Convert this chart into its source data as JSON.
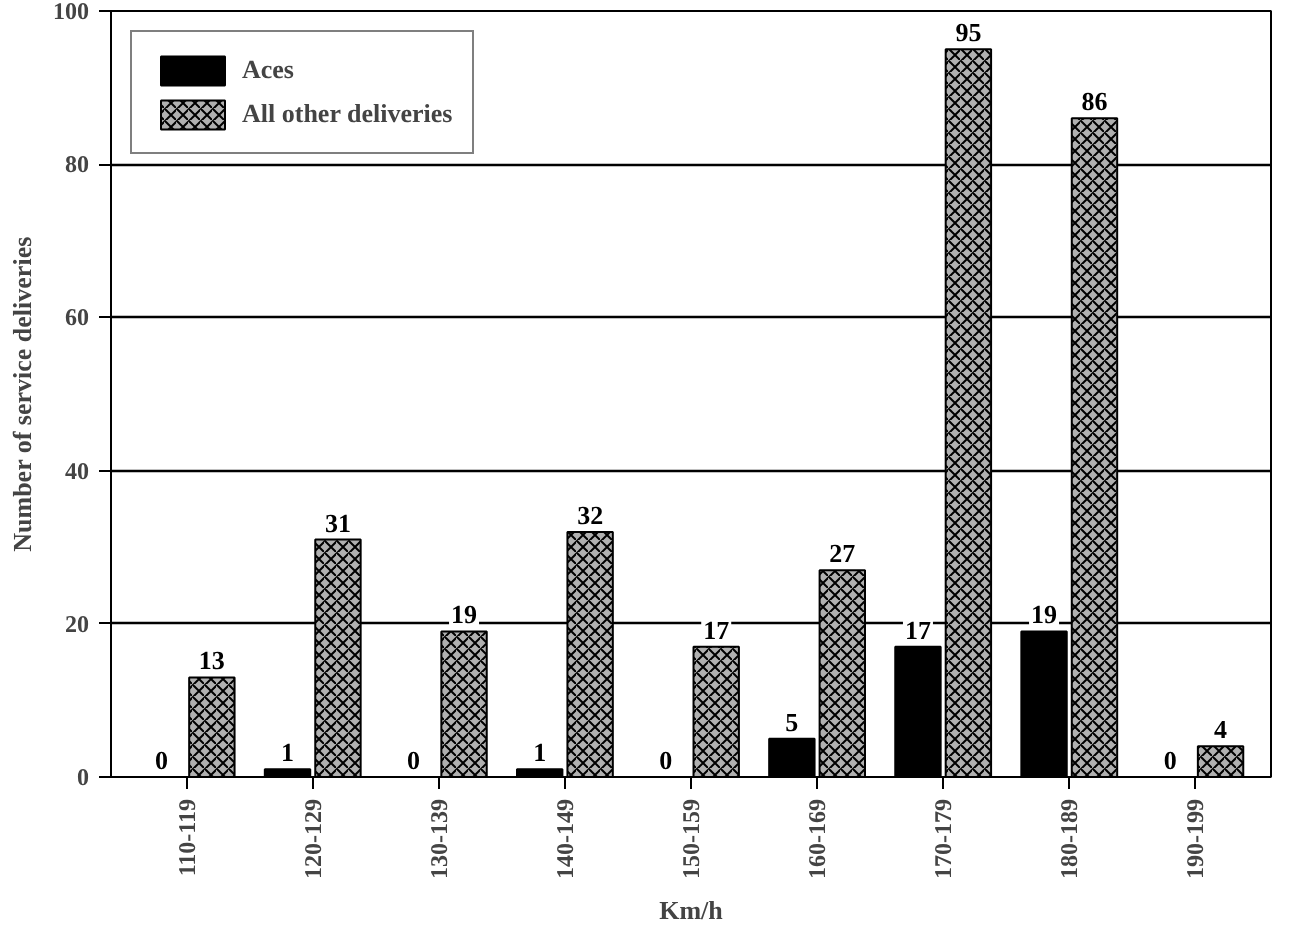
{
  "chart_data": {
    "type": "bar",
    "xlabel": "Km/h",
    "ylabel": "Number of service deliveries",
    "categories": [
      "110-119",
      "120-129",
      "130-139",
      "140-149",
      "150-159",
      "160-169",
      "170-179",
      "180-189",
      "190-199"
    ],
    "series": [
      {
        "name": "Aces",
        "color": "#000000",
        "values": [
          0,
          1,
          0,
          1,
          0,
          5,
          17,
          19,
          0
        ]
      },
      {
        "name": "All other deliveries",
        "color": "#b0b0b0",
        "values": [
          13,
          31,
          19,
          32,
          17,
          27,
          95,
          86,
          4
        ]
      }
    ],
    "ylim": [
      0,
      100
    ],
    "yticks": [
      0,
      20,
      40,
      60,
      80,
      100
    ],
    "grid": "y",
    "legend": "top left",
    "data_labels": true
  }
}
